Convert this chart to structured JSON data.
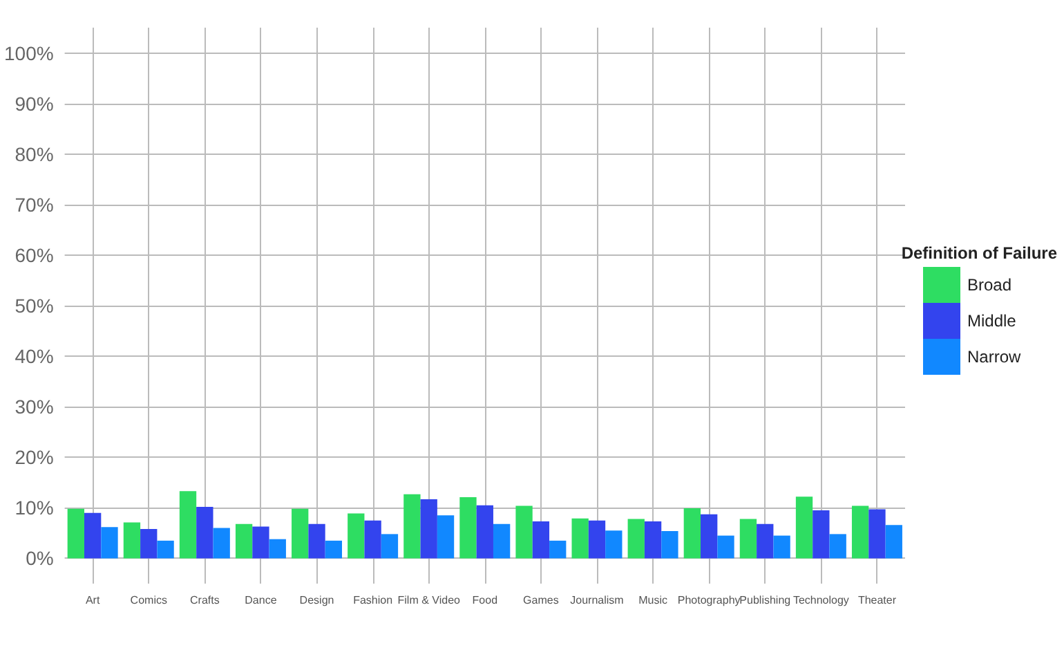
{
  "chart_data": {
    "type": "bar",
    "legend_title": "Definition of Failure",
    "legend": "right",
    "grid": true,
    "categories": [
      "Art",
      "Comics",
      "Crafts",
      "Dance",
      "Design",
      "Fashion",
      "Film & Video",
      "Food",
      "Games",
      "Journalism",
      "Music",
      "Photography",
      "Publishing",
      "Technology",
      "Theater"
    ],
    "series": [
      {
        "name": "Broad",
        "color": "#2edd62",
        "values": [
          9.8,
          7.1,
          13.3,
          6.8,
          9.8,
          8.9,
          12.7,
          12.1,
          10.4,
          7.9,
          7.8,
          9.9,
          7.8,
          12.2,
          10.4
        ]
      },
      {
        "name": "Middle",
        "color": "#3344ee",
        "values": [
          9.0,
          5.8,
          10.2,
          6.3,
          6.8,
          7.5,
          11.7,
          10.5,
          7.3,
          7.5,
          7.3,
          8.7,
          6.8,
          9.5,
          9.7
        ]
      },
      {
        "name": "Narrow",
        "color": "#1188ff",
        "values": [
          6.2,
          3.5,
          6.0,
          3.8,
          3.5,
          4.8,
          8.5,
          6.8,
          3.5,
          5.5,
          5.4,
          4.5,
          4.5,
          4.8,
          6.6
        ]
      }
    ],
    "ylim": [
      -5,
      105
    ],
    "yticks": [
      {
        "value": 0,
        "label": "0%"
      },
      {
        "value": 10,
        "label": "10%"
      },
      {
        "value": 20,
        "label": "20%"
      },
      {
        "value": 30,
        "label": "30%"
      },
      {
        "value": 40,
        "label": "40%"
      },
      {
        "value": 50,
        "label": "50%"
      },
      {
        "value": 60,
        "label": "60%"
      },
      {
        "value": 70,
        "label": "70%"
      },
      {
        "value": 80,
        "label": "80%"
      },
      {
        "value": 90,
        "label": "90%"
      },
      {
        "value": 100,
        "label": "100%"
      }
    ]
  }
}
